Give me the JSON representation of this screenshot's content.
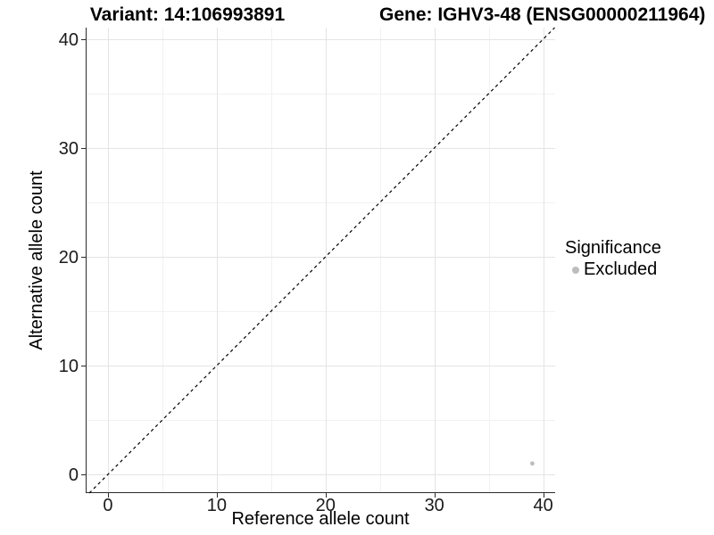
{
  "chart_data": {
    "type": "scatter",
    "title_left": "Variant: 14:106993891",
    "title_right": "Gene: IGHV3-48 (ENSG00000211964)",
    "xlabel": "Reference allele count",
    "ylabel": "Alternative allele count",
    "xlim": [
      -2.05,
      41.1
    ],
    "ylim": [
      -1.72,
      41.06
    ],
    "x_ticks": [
      0,
      10,
      20,
      30,
      40
    ],
    "y_ticks": [
      0,
      10,
      20,
      30,
      40
    ],
    "minor_grid_step": 5,
    "grid": true,
    "legend_position": "right",
    "identity_line": {
      "equation": "y = x",
      "style": "dashed",
      "color": "#000000"
    },
    "series": [
      {
        "name": "Excluded",
        "color": "#bdbdbd",
        "points": [
          {
            "x": 39,
            "y": 1
          }
        ]
      }
    ],
    "legend": {
      "title": "Significance",
      "items": [
        {
          "label": "Excluded",
          "color": "#bdbdbd"
        }
      ]
    },
    "colors": {
      "grid_major": "#e4e4e4",
      "grid_minor": "#f1f1f1",
      "axis_line": "#2b2b2b",
      "tick_text": "#1a1a1a",
      "background": "#ffffff"
    }
  }
}
